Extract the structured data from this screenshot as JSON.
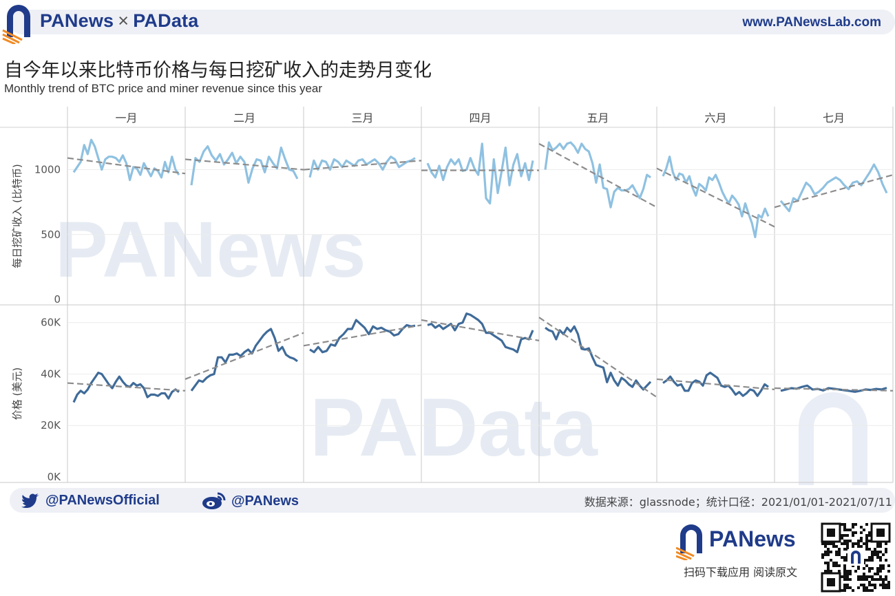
{
  "header": {
    "brand_left": "PANews",
    "brand_sep": "×",
    "brand_right": "PAData",
    "url": "www.PANewsLab.com"
  },
  "title": {
    "zh": "自今年以来比特币价格与每日挖矿收入的走势月变化",
    "en": "Monthly trend of BTC price and miner revenue since this year"
  },
  "footer": {
    "twitter": "@PANewsOfficial",
    "weibo": "@PANews",
    "source": "数据来源：glassnode；统计口径：2021/01/01-2021/07/11",
    "app_brand": "PANews",
    "app_caption": "扫码下载应用  阅读原文"
  },
  "watermarks": {
    "top": "PANews",
    "bottom": "PAData"
  },
  "colors": {
    "revenue_line": "#8fc1e1",
    "price_line": "#3f6b99",
    "trend_line": "#8c8c8c",
    "brand_blue": "#1f3b8a",
    "brand_orange": "#f08a24"
  },
  "chart_data": {
    "type": "line",
    "facet_columns": [
      "一月",
      "二月",
      "三月",
      "四月",
      "五月",
      "六月",
      "七月"
    ],
    "panels": [
      {
        "ylabel": "每日挖矿收入 (比特币)",
        "ylim": [
          0,
          1300
        ],
        "yticks": [
          {
            "v": 0,
            "label": "0"
          },
          {
            "v": 500,
            "label": "500"
          },
          {
            "v": 1000,
            "label": "1000"
          }
        ],
        "series": [
          [
            980,
            1020,
            1060,
            1190,
            1120,
            1230,
            1180,
            1090,
            1000,
            1080,
            1100,
            1100,
            1090,
            1060,
            1110,
            1050,
            920,
            1020,
            1010,
            960,
            1050,
            1000,
            950,
            1010,
            990,
            940,
            1060,
            980,
            1100,
            1000,
            960
          ],
          [
            880,
            1090,
            1060,
            1140,
            1180,
            1110,
            1070,
            1120,
            1040,
            1080,
            1130,
            1050,
            1100,
            1060,
            900,
            1010,
            1080,
            1070,
            980,
            1100,
            1050,
            1010,
            1170,
            1080,
            1000,
            990,
            930
          ],
          [
            940,
            1070,
            1000,
            1070,
            1060,
            1000,
            1080,
            1060,
            1020,
            1070,
            1050,
            1030,
            1070,
            1080,
            1040,
            1060,
            1080,
            1050,
            1000,
            1060,
            1100,
            1080,
            1020,
            1040,
            1060,
            1070,
            1090
          ],
          [
            1050,
            980,
            940,
            1030,
            920,
            1020,
            1080,
            1040,
            1080,
            990,
            1000,
            1090,
            1010,
            960,
            1200,
            780,
            740,
            1080,
            820,
            990,
            1170,
            880,
            1040,
            1120,
            950,
            1050,
            920,
            1070
          ],
          [
            1000,
            1210,
            1150,
            1170,
            1200,
            1160,
            1200,
            1210,
            1180,
            1130,
            1200,
            1160,
            1140,
            1050,
            900,
            1040,
            860,
            850,
            710,
            830,
            860,
            840,
            840,
            850,
            880,
            830,
            780,
            850,
            960,
            940
          ],
          [
            950,
            1010,
            1100,
            980,
            920,
            970,
            960,
            900,
            950,
            860,
            800,
            890,
            870,
            840,
            940,
            920,
            960,
            900,
            830,
            780,
            740,
            800,
            770,
            730,
            640,
            740,
            660,
            590,
            480,
            650,
            630,
            700,
            640
          ],
          [
            760,
            720,
            680,
            780,
            760,
            830,
            900,
            870,
            810,
            830,
            860,
            900,
            920,
            940,
            920,
            880,
            850,
            900,
            910,
            880,
            930,
            980,
            1040,
            980,
            890,
            820
          ]
        ],
        "trend": [
          [
            1090,
            970
          ],
          [
            1080,
            1000
          ],
          [
            1000,
            1070
          ],
          [
            995,
            995
          ],
          [
            1200,
            710
          ],
          [
            1010,
            560
          ],
          [
            710,
            960
          ]
        ]
      },
      {
        "ylabel": "价格 (美元)",
        "ylim": [
          0,
          65000
        ],
        "yticks": [
          {
            "v": 0,
            "label": "0K"
          },
          {
            "v": 20000,
            "label": "20K"
          },
          {
            "v": 40000,
            "label": "40K"
          },
          {
            "v": 60000,
            "label": "60K"
          }
        ],
        "series": [
          [
            29000,
            32000,
            33500,
            32500,
            34000,
            36500,
            38500,
            40500,
            40000,
            38000,
            36000,
            34500,
            37000,
            39000,
            37000,
            35500,
            35000,
            36500,
            35500,
            36000,
            34500,
            31000,
            32000,
            32000,
            31500,
            32500,
            32500,
            30500,
            33000,
            34000,
            33000
          ],
          [
            33500,
            35500,
            37500,
            37000,
            38500,
            39500,
            40000,
            46500,
            46500,
            44500,
            47500,
            47500,
            48000,
            47000,
            48500,
            49500,
            48000,
            51000,
            53000,
            55000,
            56500,
            57500,
            54000,
            49000,
            50500,
            47500,
            46500,
            46000,
            45000
          ],
          [
            49500,
            48500,
            50500,
            48500,
            49000,
            51500,
            51000,
            54000,
            55500,
            57500,
            57500,
            61000,
            59500,
            58000,
            55500,
            58500,
            57500,
            58000,
            57000,
            56500,
            55000,
            55500,
            57500,
            59000,
            58500,
            58800
          ],
          [
            59000,
            59500,
            58000,
            59000,
            57500,
            58500,
            59500,
            57000,
            59500,
            60000,
            63500,
            63000,
            62000,
            61000,
            59500,
            56000,
            56000,
            55000,
            54000,
            53000,
            50500,
            50000,
            49500,
            48500,
            53500,
            54000,
            53500,
            57000
          ],
          [
            58000,
            57000,
            56500,
            53500,
            57000,
            55500,
            58000,
            56500,
            58500,
            55500,
            49800,
            49500,
            50000,
            46500,
            43500,
            43000,
            42500,
            36800,
            40500,
            37500,
            35500,
            38500,
            37500,
            36000,
            35000,
            37500,
            35500,
            34000,
            35500,
            37000
          ],
          [
            36500,
            37500,
            39000,
            37000,
            35500,
            36000,
            33500,
            33500,
            36500,
            37500,
            37000,
            35500,
            39500,
            40500,
            39500,
            38500,
            35500,
            35000,
            35500,
            34000,
            32000,
            33000,
            31500,
            32500,
            34000,
            33500,
            31500,
            33500,
            36000,
            35000
          ],
          [
            33500,
            34000,
            34500,
            34300,
            35000,
            35500,
            34000,
            34200,
            33600,
            34500,
            34300,
            34000,
            33700,
            33400,
            33100,
            33500,
            34000,
            33800,
            34200,
            34000,
            34600
          ]
        ],
        "trend": [
          [
            36500,
            33500
          ],
          [
            38000,
            56000
          ],
          [
            51000,
            59000
          ],
          [
            61000,
            53000
          ],
          [
            62000,
            31000
          ],
          [
            38000,
            34000
          ],
          [
            34500,
            33500
          ]
        ]
      }
    ]
  }
}
